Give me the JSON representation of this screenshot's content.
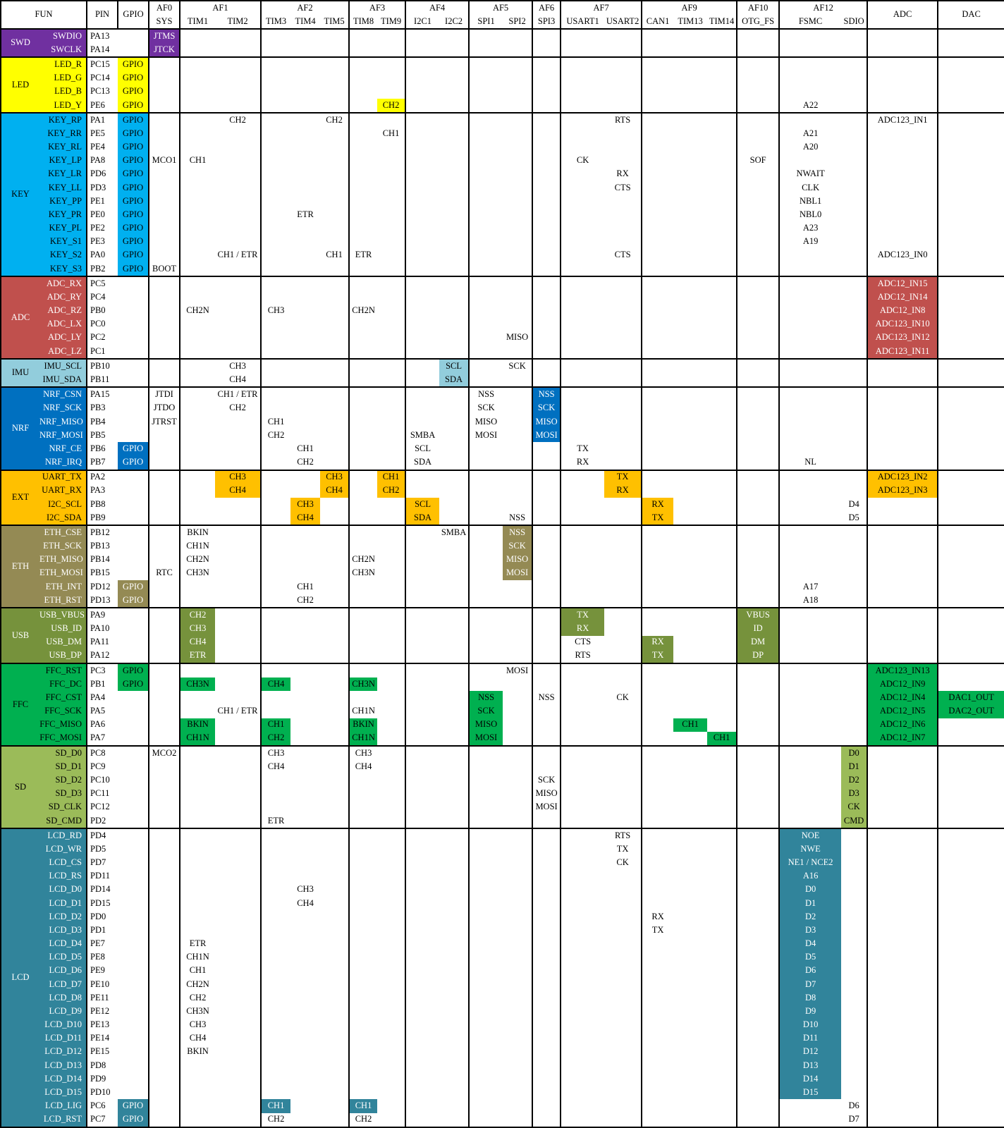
{
  "header": {
    "row1": [
      {
        "label": "FUN",
        "colspan": 2,
        "rowspan": 2
      },
      {
        "label": "PIN",
        "rowspan": 2,
        "bl": true
      },
      {
        "label": "GPIO",
        "rowspan": 2,
        "bl": true
      },
      {
        "label": "AF0",
        "bl": true
      },
      {
        "label": "AF1",
        "colspan": 2,
        "bl": true
      },
      {
        "label": "AF2",
        "colspan": 3,
        "bl": true
      },
      {
        "label": "AF3",
        "colspan": 2,
        "bl": true
      },
      {
        "label": "AF4",
        "colspan": 2,
        "bl": true
      },
      {
        "label": "AF5",
        "colspan": 2,
        "bl": true
      },
      {
        "label": "AF6",
        "bl": true
      },
      {
        "label": "AF7",
        "colspan": 2,
        "bl": true
      },
      {
        "label": "AF9",
        "colspan": 3,
        "bl": true
      },
      {
        "label": "AF10",
        "bl": true
      },
      {
        "label": "AF12",
        "colspan": 2,
        "bl": true
      },
      {
        "label": "ADC",
        "rowspan": 2,
        "bl": true
      },
      {
        "label": "DAC",
        "rowspan": 2,
        "bl": true
      }
    ],
    "row2": [
      {
        "label": "SYS",
        "key": "af0"
      },
      {
        "label": "TIM1",
        "key": "tim1"
      },
      {
        "label": "TIM2",
        "key": "tim2"
      },
      {
        "label": "TIM3",
        "key": "tim3"
      },
      {
        "label": "TIM4",
        "key": "tim4"
      },
      {
        "label": "TIM5",
        "key": "tim5"
      },
      {
        "label": "TIM8",
        "key": "tim8"
      },
      {
        "label": "TIM9",
        "key": "tim9"
      },
      {
        "label": "I2C1",
        "key": "i2c1"
      },
      {
        "label": "I2C2",
        "key": "i2c2"
      },
      {
        "label": "SPI1",
        "key": "spi1"
      },
      {
        "label": "SPI2",
        "key": "spi2"
      },
      {
        "label": "SPI3",
        "key": "spi3"
      },
      {
        "label": "USART1",
        "key": "usart1"
      },
      {
        "label": "USART2",
        "key": "usart2"
      },
      {
        "label": "CAN1",
        "key": "can1"
      },
      {
        "label": "TIM13",
        "key": "tim13"
      },
      {
        "label": "TIM14",
        "key": "tim14"
      },
      {
        "label": "OTG_FS",
        "key": "otg"
      },
      {
        "label": "FSMC",
        "key": "fsmc"
      },
      {
        "label": "SDIO",
        "key": "sdio"
      }
    ]
  },
  "groups": [
    {
      "name": "SWD",
      "color": "#7030A0",
      "text": "#FFFFFF",
      "rows": [
        {
          "s": "SWDIO",
          "p": "PA13",
          "c": {
            "af0": "!JTMS"
          }
        },
        {
          "s": "SWCLK",
          "p": "PA14",
          "c": {
            "af0": "!JTCK"
          }
        }
      ]
    },
    {
      "name": "LED",
      "color": "#FFFF00",
      "text": "#000000",
      "rows": [
        {
          "s": "LED_R",
          "p": "PC15",
          "c": {
            "gpio": "!GPIO"
          }
        },
        {
          "s": "LED_G",
          "p": "PC14",
          "c": {
            "gpio": "!GPIO"
          }
        },
        {
          "s": "LED_B",
          "p": "PC13",
          "c": {
            "gpio": "!GPIO"
          }
        },
        {
          "s": "LED_Y",
          "p": "PE6",
          "c": {
            "gpio": "!GPIO",
            "tim9": "!CH2",
            "fsmc": "A22"
          }
        }
      ]
    },
    {
      "name": "KEY",
      "color": "#00B0F0",
      "text": "#000000",
      "rows": [
        {
          "s": "KEY_RP",
          "p": "PA1",
          "c": {
            "gpio": "!GPIO",
            "tim2": "CH2",
            "tim5": "CH2",
            "usart2": "RTS",
            "adc": "ADC123_IN1"
          }
        },
        {
          "s": "KEY_RR",
          "p": "PE5",
          "c": {
            "gpio": "!GPIO",
            "tim9": "CH1",
            "fsmc": "A21"
          }
        },
        {
          "s": "KEY_RL",
          "p": "PE4",
          "c": {
            "gpio": "!GPIO",
            "fsmc": "A20"
          }
        },
        {
          "s": "KEY_LP",
          "p": "PA8",
          "c": {
            "gpio": "!GPIO",
            "af0": "MCO1",
            "tim1": "CH1",
            "usart1": "CK",
            "otg": "SOF"
          }
        },
        {
          "s": "KEY_LR",
          "p": "PD6",
          "c": {
            "gpio": "!GPIO",
            "usart2": "RX",
            "fsmc": "NWAIT"
          }
        },
        {
          "s": "KEY_LL",
          "p": "PD3",
          "c": {
            "gpio": "!GPIO",
            "usart2": "CTS",
            "fsmc": "CLK"
          }
        },
        {
          "s": "KEY_PP",
          "p": "PE1",
          "c": {
            "gpio": "!GPIO",
            "fsmc": "NBL1"
          }
        },
        {
          "s": "KEY_PR",
          "p": "PE0",
          "c": {
            "gpio": "!GPIO",
            "tim4": "ETR",
            "fsmc": "NBL0"
          }
        },
        {
          "s": "KEY_PL",
          "p": "PE2",
          "c": {
            "gpio": "!GPIO",
            "fsmc": "A23"
          }
        },
        {
          "s": "KEY_S1",
          "p": "PE3",
          "c": {
            "gpio": "!GPIO",
            "fsmc": "A19"
          }
        },
        {
          "s": "KEY_S2",
          "p": "PA0",
          "c": {
            "gpio": "!GPIO",
            "tim2": "CH1 / ETR",
            "tim5": "CH1",
            "tim8": "ETR",
            "usart2": "CTS",
            "adc": "ADC123_IN0"
          }
        },
        {
          "s": "KEY_S3",
          "p": "PB2",
          "c": {
            "gpio": "!GPIO",
            "af0": "BOOT"
          }
        }
      ]
    },
    {
      "name": "ADC",
      "color": "#C0504D",
      "text": "#FFFFFF",
      "rows": [
        {
          "s": "ADC_RX",
          "p": "PC5",
          "c": {
            "adc": "!ADC12_IN15"
          }
        },
        {
          "s": "ADC_RY",
          "p": "PC4",
          "c": {
            "adc": "!ADC12_IN14"
          }
        },
        {
          "s": "ADC_RZ",
          "p": "PB0",
          "c": {
            "tim1": "CH2N",
            "tim3": "CH3",
            "tim8": "CH2N",
            "adc": "!ADC12_IN8"
          }
        },
        {
          "s": "ADC_LX",
          "p": "PC0",
          "c": {
            "adc": "!ADC123_IN10"
          }
        },
        {
          "s": "ADC_LY",
          "p": "PC2",
          "c": {
            "spi2": "MISO",
            "adc": "!ADC123_IN12"
          }
        },
        {
          "s": "ADC_LZ",
          "p": "PC1",
          "c": {
            "adc": "!ADC123_IN11"
          }
        }
      ]
    },
    {
      "name": "IMU",
      "color": "#92CDDC",
      "text": "#000000",
      "rows": [
        {
          "s": "IMU_SCL",
          "p": "PB10",
          "c": {
            "tim2": "CH3",
            "i2c2": "!SCL",
            "spi2": "SCK"
          }
        },
        {
          "s": "IMU_SDA",
          "p": "PB11",
          "c": {
            "tim2": "CH4",
            "i2c2": "!SDA"
          }
        }
      ]
    },
    {
      "name": "NRF",
      "color": "#0070C0",
      "text": "#FFFFFF",
      "rows": [
        {
          "s": "NRF_CSN",
          "p": "PA15",
          "c": {
            "af0": "JTDI",
            "tim2": "CH1 / ETR",
            "spi1": "NSS",
            "spi3": "!NSS"
          }
        },
        {
          "s": "NRF_SCK",
          "p": "PB3",
          "c": {
            "af0": "JTDO",
            "tim2": "CH2",
            "spi1": "SCK",
            "spi3": "!SCK"
          }
        },
        {
          "s": "NRF_MISO",
          "p": "PB4",
          "c": {
            "af0": "JTRST",
            "tim3": "CH1",
            "spi1": "MISO",
            "spi3": "!MISO"
          }
        },
        {
          "s": "NRF_MOSI",
          "p": "PB5",
          "c": {
            "tim3": "CH2",
            "i2c1": "SMBA",
            "spi1": "MOSI",
            "spi3": "!MOSI"
          }
        },
        {
          "s": "NRF_CE",
          "p": "PB6",
          "c": {
            "gpio": "!GPIO",
            "tim4": "CH1",
            "i2c1": "SCL",
            "usart1": "TX"
          }
        },
        {
          "s": "NRF_IRQ",
          "p": "PB7",
          "c": {
            "gpio": "!GPIO",
            "tim4": "CH2",
            "i2c1": "SDA",
            "usart1": "RX",
            "fsmc": "NL"
          }
        }
      ]
    },
    {
      "name": "EXT",
      "color": "#FFC000",
      "text": "#000000",
      "rows": [
        {
          "s": "UART_TX",
          "p": "PA2",
          "c": {
            "tim2": "!CH3",
            "tim5": "!CH3",
            "tim9": "!CH1",
            "usart2": "!TX",
            "adc": "!ADC123_IN2"
          }
        },
        {
          "s": "UART_RX",
          "p": "PA3",
          "c": {
            "tim2": "!CH4",
            "tim5": "!CH4",
            "tim9": "!CH2",
            "usart2": "!RX",
            "adc": "!ADC123_IN3"
          }
        },
        {
          "s": "I2C_SCL",
          "p": "PB8",
          "c": {
            "tim4": "!CH3",
            "i2c1": "!SCL",
            "can1": "!RX",
            "sdio": "D4"
          }
        },
        {
          "s": "I2C_SDA",
          "p": "PB9",
          "c": {
            "tim4": "!CH4",
            "i2c1": "!SDA",
            "spi2": "NSS",
            "can1": "!TX",
            "sdio": "D5"
          }
        }
      ]
    },
    {
      "name": "ETH",
      "color": "#948A54",
      "text": "#FFFFFF",
      "rows": [
        {
          "s": "ETH_CSE",
          "p": "PB12",
          "c": {
            "tim1": "BKIN",
            "i2c2": "SMBA",
            "spi2": "!NSS"
          }
        },
        {
          "s": "ETH_SCK",
          "p": "PB13",
          "c": {
            "tim1": "CH1N",
            "spi2": "!SCK"
          }
        },
        {
          "s": "ETH_MISO",
          "p": "PB14",
          "c": {
            "tim1": "CH2N",
            "tim8": "CH2N",
            "spi2": "!MISO"
          }
        },
        {
          "s": "ETH_MOSI",
          "p": "PB15",
          "c": {
            "af0": "RTC",
            "tim1": "CH3N",
            "tim8": "CH3N",
            "spi2": "!MOSI"
          }
        },
        {
          "s": "ETH_INT",
          "p": "PD12",
          "c": {
            "gpio": "!GPIO",
            "tim4": "CH1",
            "fsmc": "A17"
          }
        },
        {
          "s": "ETH_RST",
          "p": "PD13",
          "c": {
            "gpio": "!GPIO",
            "tim4": "CH2",
            "fsmc": "A18"
          }
        }
      ]
    },
    {
      "name": "USB",
      "color": "#76923C",
      "text": "#FFFFFF",
      "rows": [
        {
          "s": "USB_VBUS",
          "p": "PA9",
          "c": {
            "tim1": "!CH2",
            "usart1": "!TX",
            "otg": "!VBUS"
          }
        },
        {
          "s": "USB_ID",
          "p": "PA10",
          "c": {
            "tim1": "!CH3",
            "usart1": "!RX",
            "otg": "!ID"
          }
        },
        {
          "s": "USB_DM",
          "p": "PA11",
          "c": {
            "tim1": "!CH4",
            "usart1": "CTS",
            "can1": "!RX",
            "otg": "!DM"
          }
        },
        {
          "s": "USB_DP",
          "p": "PA12",
          "c": {
            "tim1": "!ETR",
            "usart1": "RTS",
            "can1": "!TX",
            "otg": "!DP"
          }
        }
      ]
    },
    {
      "name": "FFC",
      "color": "#00B050",
      "text": "#000000",
      "rows": [
        {
          "s": "FFC_RST",
          "p": "PC3",
          "c": {
            "gpio": "!GPIO",
            "spi2": "MOSI",
            "adc": "!ADC123_IN13"
          }
        },
        {
          "s": "FFC_DC",
          "p": "PB1",
          "c": {
            "gpio": "!GPIO",
            "tim1": "!CH3N",
            "tim3": "!CH4",
            "tim8": "!CH3N",
            "adc": "!ADC12_IN9"
          }
        },
        {
          "s": "FFC_CST",
          "p": "PA4",
          "c": {
            "spi1": "!NSS",
            "spi3": "NSS",
            "usart2": "CK",
            "adc": "!ADC12_IN4",
            "dac": "!DAC1_OUT"
          }
        },
        {
          "s": "FFC_SCK",
          "p": "PA5",
          "c": {
            "tim2": "CH1 / ETR",
            "tim8": "CH1N",
            "spi1": "!SCK",
            "adc": "!ADC12_IN5",
            "dac": "!DAC2_OUT"
          }
        },
        {
          "s": "FFC_MISO",
          "p": "PA6",
          "c": {
            "tim1": "!BKIN",
            "tim3": "!CH1",
            "tim8": "!BKIN",
            "spi1": "!MISO",
            "tim13": "!CH1",
            "adc": "!ADC12_IN6"
          }
        },
        {
          "s": "FFC_MOSI",
          "p": "PA7",
          "c": {
            "tim1": "!CH1N",
            "tim3": "!CH2",
            "tim8": "!CH1N",
            "spi1": "!MOSI",
            "tim14": "!CH1",
            "adc": "!ADC12_IN7"
          }
        }
      ]
    },
    {
      "name": "SD",
      "color": "#9BBB59",
      "text": "#000000",
      "rows": [
        {
          "s": "SD_D0",
          "p": "PC8",
          "c": {
            "af0": "MCO2",
            "tim3": "CH3",
            "tim8": "CH3",
            "sdio": "!D0"
          }
        },
        {
          "s": "SD_D1",
          "p": "PC9",
          "c": {
            "tim3": "CH4",
            "tim8": "CH4",
            "sdio": "!D1"
          }
        },
        {
          "s": "SD_D2",
          "p": "PC10",
          "c": {
            "spi3": "SCK",
            "sdio": "!D2"
          }
        },
        {
          "s": "SD_D3",
          "p": "PC11",
          "c": {
            "spi3": "MISO",
            "sdio": "!D3"
          }
        },
        {
          "s": "SD_CLK",
          "p": "PC12",
          "c": {
            "spi3": "MOSI",
            "sdio": "!CK"
          }
        },
        {
          "s": "SD_CMD",
          "p": "PD2",
          "c": {
            "tim3": "ETR",
            "sdio": "!CMD"
          }
        }
      ]
    },
    {
      "name": "LCD",
      "color": "#31849B",
      "text": "#FFFFFF",
      "rows": [
        {
          "s": "LCD_RD",
          "p": "PD4",
          "c": {
            "usart2": "RTS",
            "fsmc": "!NOE"
          }
        },
        {
          "s": "LCD_WR",
          "p": "PD5",
          "c": {
            "usart2": "TX",
            "fsmc": "!NWE"
          }
        },
        {
          "s": "LCD_CS",
          "p": "PD7",
          "c": {
            "usart2": "CK",
            "fsmc": "!NE1 / NCE2"
          }
        },
        {
          "s": "LCD_RS",
          "p": "PD11",
          "c": {
            "fsmc": "!A16"
          }
        },
        {
          "s": "LCD_D0",
          "p": "PD14",
          "c": {
            "tim4": "CH3",
            "fsmc": "!D0"
          }
        },
        {
          "s": "LCD_D1",
          "p": "PD15",
          "c": {
            "tim4": "CH4",
            "fsmc": "!D1"
          }
        },
        {
          "s": "LCD_D2",
          "p": "PD0",
          "c": {
            "can1": "RX",
            "fsmc": "!D2"
          }
        },
        {
          "s": "LCD_D3",
          "p": "PD1",
          "c": {
            "can1": "TX",
            "fsmc": "!D3"
          }
        },
        {
          "s": "LCD_D4",
          "p": "PE7",
          "c": {
            "tim1": "ETR",
            "fsmc": "!D4"
          }
        },
        {
          "s": "LCD_D5",
          "p": "PE8",
          "c": {
            "tim1": "CH1N",
            "fsmc": "!D5"
          }
        },
        {
          "s": "LCD_D6",
          "p": "PE9",
          "c": {
            "tim1": "CH1",
            "fsmc": "!D6"
          }
        },
        {
          "s": "LCD_D7",
          "p": "PE10",
          "c": {
            "tim1": "CH2N",
            "fsmc": "!D7"
          }
        },
        {
          "s": "LCD_D8",
          "p": "PE11",
          "c": {
            "tim1": "CH2",
            "fsmc": "!D8"
          }
        },
        {
          "s": "LCD_D9",
          "p": "PE12",
          "c": {
            "tim1": "CH3N",
            "fsmc": "!D9"
          }
        },
        {
          "s": "LCD_D10",
          "p": "PE13",
          "c": {
            "tim1": "CH3",
            "fsmc": "!D10"
          }
        },
        {
          "s": "LCD_D11",
          "p": "PE14",
          "c": {
            "tim1": "CH4",
            "fsmc": "!D11"
          }
        },
        {
          "s": "LCD_D12",
          "p": "PE15",
          "c": {
            "tim1": "BKIN",
            "fsmc": "!D12"
          }
        },
        {
          "s": "LCD_D13",
          "p": "PD8",
          "c": {
            "fsmc": "!D13"
          }
        },
        {
          "s": "LCD_D14",
          "p": "PD9",
          "c": {
            "fsmc": "!D14"
          }
        },
        {
          "s": "LCD_D15",
          "p": "PD10",
          "c": {
            "fsmc": "!D15"
          }
        },
        {
          "s": "LCD_LIG",
          "p": "PC6",
          "c": {
            "gpio": "!GPIO",
            "tim3": "!CH1",
            "tim8": "!CH1",
            "sdio": "D6"
          }
        },
        {
          "s": "LCD_RST",
          "p": "PC7",
          "c": {
            "gpio": "!GPIO",
            "tim3": "CH2",
            "tim8": "CH2",
            "sdio": "D7"
          }
        }
      ]
    }
  ]
}
